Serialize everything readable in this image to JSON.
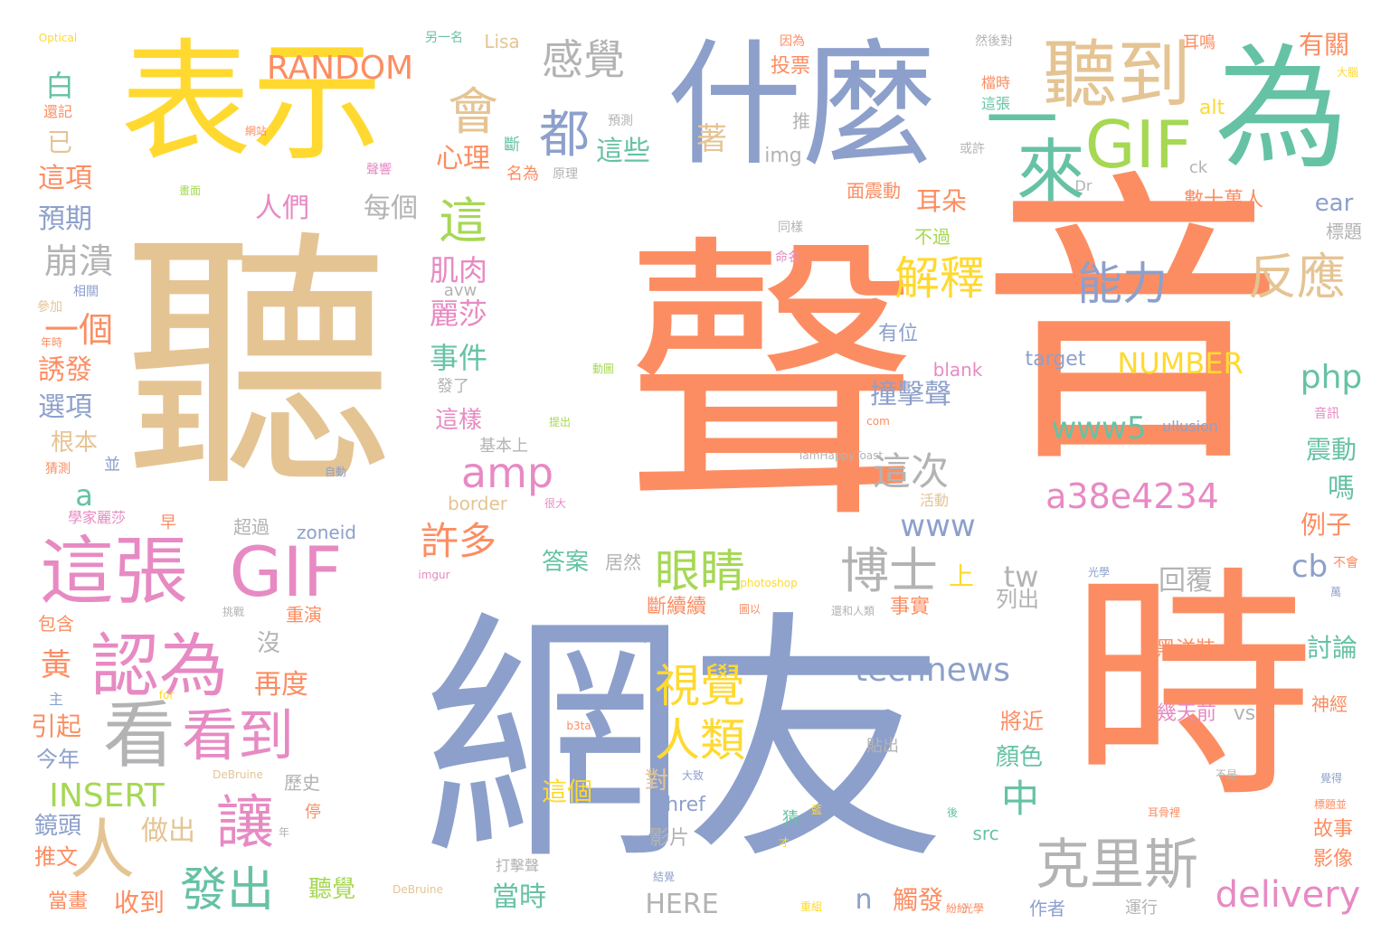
{
  "palette": [
    "#fc8d62",
    "#8da0cb",
    "#66c2a5",
    "#e78ac3",
    "#a6d854",
    "#ffd92f",
    "#e5c494",
    "#b3b3b3"
  ],
  "words": [
    "聲",
    "音",
    "網友",
    "聽",
    "時",
    "什麼",
    "表示",
    "為",
    "聽到",
    "GIF",
    "來",
    "這張",
    "GIF",
    "認為",
    "看",
    "看到",
    "讓",
    "人",
    "發出",
    "克里斯",
    "感覺",
    "會",
    "都",
    "眼睛",
    "視覺",
    "人類",
    "博士",
    "amp",
    "這",
    "解釋",
    "能力",
    "反應",
    "一",
    "a38e4234",
    "www5",
    "technews",
    "www",
    "delivery",
    "這次",
    "許多",
    "中",
    "RANDOM",
    "NUMBER",
    "INSERT",
    "php",
    "cb",
    "tw",
    "崩潰",
    "一個",
    "每個",
    "人們",
    "肌肉",
    "麗莎",
    "事件",
    "這些",
    "心理",
    "著",
    "img",
    "白",
    "已",
    "這項",
    "預期",
    "誘發",
    "選項",
    "根本",
    "a",
    "黃",
    "引起",
    "今年",
    "鏡頭",
    "推文",
    "當畫",
    "收到",
    "做出",
    "聽覺",
    "再度",
    "沒",
    "上",
    "對",
    "當時",
    "觸發",
    "n",
    "HERE",
    "href",
    "影片",
    "打擊聲",
    "這個",
    "答案",
    "居然",
    "斷續續",
    "事實",
    "列出",
    "回覆",
    "例子",
    "嗎",
    "震動",
    "討論",
    "故事",
    "影像",
    "神經",
    "將近",
    "顏色",
    "幾天前",
    "vs",
    "黑洋裝",
    "耳朵",
    "撞擊聲",
    "這樣",
    "投票",
    "推",
    "有關",
    "大腦",
    "alt",
    "ear",
    "標題",
    "數十萬人",
    "ck",
    "Dr",
    "面震動",
    "不過",
    "有位",
    "target",
    "blank",
    "avw",
    "border",
    "zoneid",
    "超過",
    "學家麗莎",
    "猜測",
    "包含",
    "早",
    "重演",
    "歷史",
    "停",
    "Lisa",
    "另一名",
    "Optical",
    "因為",
    "耳鳴",
    "然後對",
    "檔時",
    "這張",
    "還記",
    "網站",
    "斷",
    "名為",
    "原理",
    "預測",
    "聲響",
    "畫面",
    "或許",
    "同樣",
    "命名",
    "相關",
    "參加",
    "年時",
    "發了",
    "基本上",
    "並",
    "自動",
    "imgur",
    "很大",
    "光學",
    "photoshop",
    "for",
    "com",
    "IamHappyToast",
    "提出",
    "活動",
    "動圖",
    "ullusion",
    "音訊",
    "不會",
    "萬",
    "b3ta",
    "大致",
    "圖以",
    "還和人類",
    "雖然",
    "挑戰",
    "貼出",
    "不是",
    "覺得",
    "標題並",
    "耳骨裡",
    "後",
    "猜",
    "藍",
    "才",
    "結覺",
    "重組",
    "光學",
    "運行",
    "作者",
    "DeBruine",
    "挂",
    "主",
    "DeBruine",
    "src",
    "紛紛",
    "年",
    "光",
    "頭"
  ]
}
